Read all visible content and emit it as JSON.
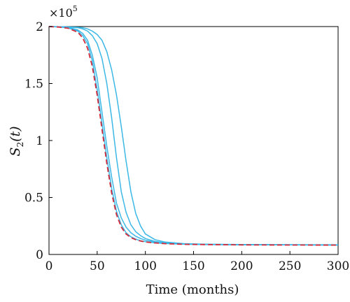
{
  "chart_data": {
    "type": "line",
    "title": "",
    "xlabel": "Time (months)",
    "ylabel": {
      "main": "S",
      "sub": "2",
      "arg": "(t)"
    },
    "y_multiplier": {
      "base": "×10",
      "exponent": "5"
    },
    "xlim": [
      0,
      300
    ],
    "ylim": [
      0,
      200000
    ],
    "x_ticks": [
      0,
      50,
      100,
      150,
      200,
      250,
      300
    ],
    "x_tick_labels": [
      "0",
      "50",
      "100",
      "150",
      "200",
      "250",
      "300"
    ],
    "y_ticks": [
      0,
      50000,
      100000,
      150000,
      200000
    ],
    "y_tick_labels": [
      "0",
      "0.5",
      "1",
      "1.5",
      "2"
    ],
    "grid": false,
    "colors": {
      "solid": "#3cb8e6",
      "dashed": "#d42a3a"
    },
    "series": [
      {
        "style": "solid",
        "color": "#3cb8e6",
        "x": [
          0,
          10,
          20,
          30,
          35,
          40,
          45,
          50,
          55,
          60,
          65,
          70,
          75,
          80,
          85,
          90,
          95,
          100,
          110,
          120,
          140,
          160,
          200,
          250,
          300
        ],
        "y": [
          200000,
          199800,
          199300,
          197000,
          194000,
          188000,
          175000,
          155000,
          125000,
          95000,
          68000,
          45000,
          32000,
          24000,
          19000,
          16000,
          14000,
          12500,
          11000,
          10000,
          9000,
          8800,
          8500,
          8400,
          8200
        ]
      },
      {
        "style": "solid",
        "color": "#3cb8e6",
        "x": [
          0,
          10,
          20,
          30,
          35,
          40,
          45,
          50,
          55,
          60,
          65,
          70,
          75,
          80,
          85,
          90,
          95,
          100,
          110,
          120,
          140,
          160,
          200,
          250,
          300
        ],
        "y": [
          200000,
          199900,
          199600,
          199000,
          198000,
          196000,
          192000,
          185000,
          172000,
          150000,
          120000,
          85000,
          55000,
          37000,
          26000,
          20000,
          16500,
          14000,
          11500,
          10300,
          9300,
          8900,
          8600,
          8500,
          8300
        ]
      },
      {
        "style": "solid",
        "color": "#3cb8e6",
        "x": [
          0,
          10,
          20,
          30,
          35,
          40,
          45,
          50,
          55,
          60,
          65,
          70,
          75,
          80,
          85,
          90,
          95,
          100,
          110,
          120,
          140,
          160,
          200,
          250,
          300
        ],
        "y": [
          200000,
          199900,
          199700,
          199400,
          199000,
          198000,
          196000,
          193000,
          188000,
          178000,
          162000,
          140000,
          112000,
          82000,
          55000,
          36000,
          25000,
          18000,
          13000,
          11000,
          9500,
          9000,
          8700,
          8600,
          8500
        ]
      },
      {
        "style": "solid",
        "color": "#3cb8e6",
        "x": [
          0,
          10,
          20,
          30,
          35,
          40,
          45,
          50,
          55,
          60,
          65,
          70,
          75,
          80,
          85,
          90,
          95,
          100,
          110,
          120,
          140,
          160,
          200,
          250,
          300
        ],
        "y": [
          200000,
          199700,
          198800,
          196000,
          192000,
          185000,
          170000,
          145000,
          115000,
          85000,
          58000,
          38000,
          26000,
          19000,
          15500,
          13500,
          12000,
          11200,
          10200,
          9600,
          9000,
          8800,
          8500,
          8400,
          8300
        ]
      },
      {
        "style": "dashed",
        "color": "#d42a3a",
        "x": [
          0,
          10,
          20,
          30,
          35,
          40,
          45,
          50,
          55,
          60,
          65,
          70,
          75,
          80,
          85,
          90,
          95,
          100,
          110,
          120,
          140,
          160,
          200,
          250,
          300
        ],
        "y": [
          200000,
          199600,
          198500,
          195000,
          190000,
          181000,
          165000,
          140000,
          110000,
          80000,
          54000,
          35000,
          24000,
          18000,
          14800,
          13000,
          11800,
          11000,
          10100,
          9500,
          8900,
          8700,
          8400,
          8300,
          8200
        ]
      }
    ]
  }
}
